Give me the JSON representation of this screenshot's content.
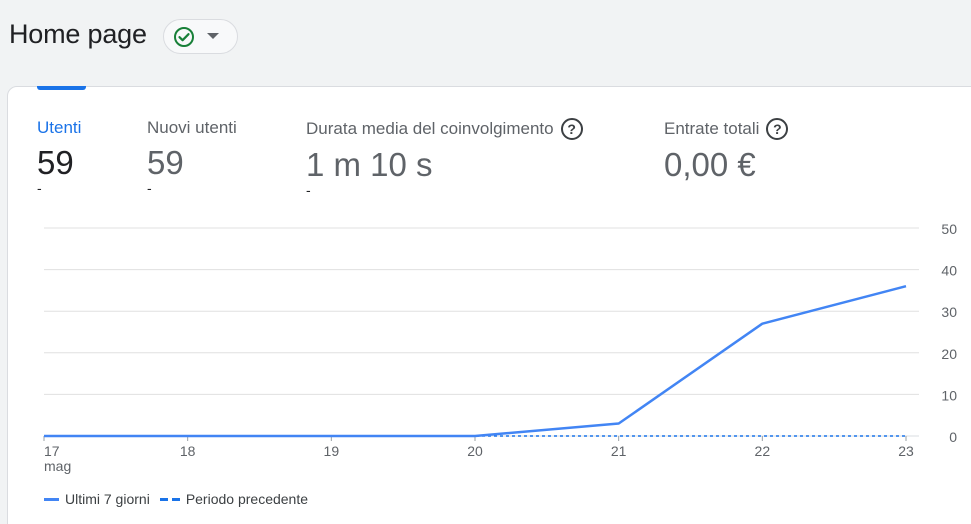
{
  "header": {
    "title": "Home page",
    "status_icon": "check-circle-icon",
    "dropdown_icon": "caret-down-icon"
  },
  "metrics": [
    {
      "label": "Utenti",
      "value": "59",
      "delta": "-",
      "active": true,
      "help": false
    },
    {
      "label": "Nuovi utenti",
      "value": "59",
      "delta": "-",
      "active": false,
      "help": false
    },
    {
      "label": "Durata media del coinvolgimento",
      "value": "1 m 10 s",
      "delta": "-",
      "active": false,
      "help": true
    },
    {
      "label": "Entrate totali",
      "value": "0,00 €",
      "delta": "",
      "active": false,
      "help": true
    }
  ],
  "colors": {
    "accent": "#1a73e8",
    "series_current": "#4285f4",
    "series_previous": "#1a73e8",
    "gridline": "#e0e0e0",
    "success": "#188038"
  },
  "chart_data": {
    "type": "line",
    "categories": [
      "17",
      "18",
      "19",
      "20",
      "21",
      "22",
      "23"
    ],
    "x_sublabel_first": "mag",
    "ylim": [
      0,
      50
    ],
    "yticks": [
      0,
      10,
      20,
      30,
      40,
      50
    ],
    "y_axis_side": "right",
    "grid": true,
    "legend_placement": "bottom-left",
    "series": [
      {
        "name": "Ultimi 7 giorni",
        "style": "solid",
        "values": [
          0,
          0,
          0,
          0,
          3,
          27,
          36
        ]
      },
      {
        "name": "Periodo precedente",
        "style": "dashed",
        "values": [
          0,
          0,
          0,
          0,
          0,
          0,
          0
        ]
      }
    ]
  }
}
